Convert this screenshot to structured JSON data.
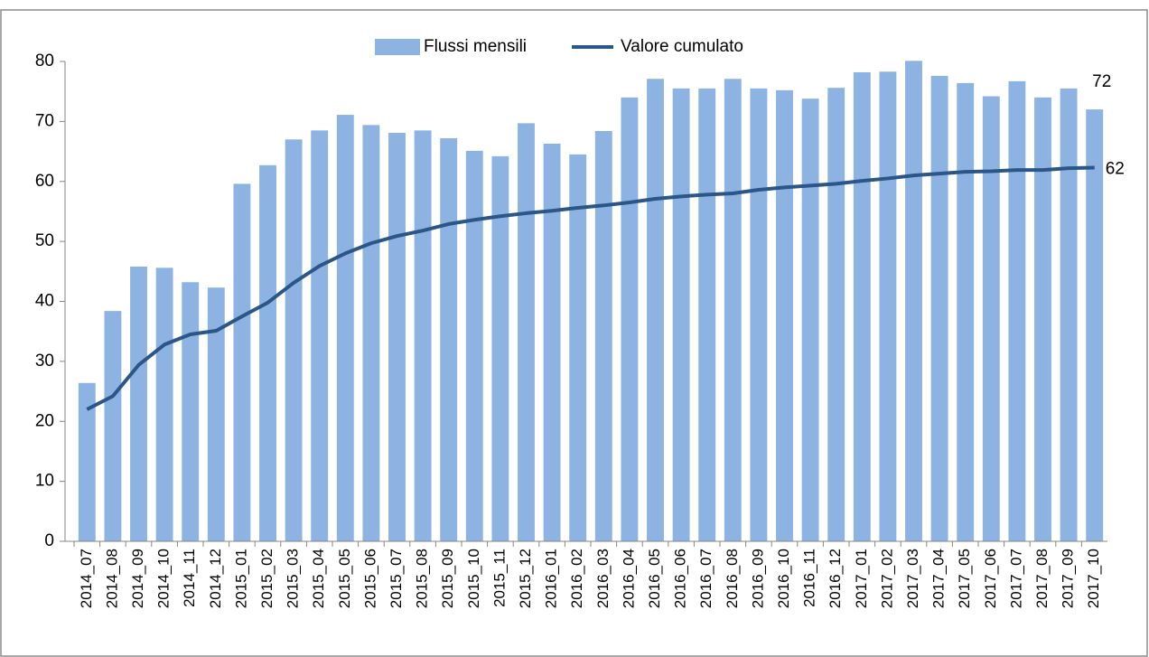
{
  "chart_data": {
    "type": "bar-line",
    "categories": [
      "2014_07",
      "2014_08",
      "2014_09",
      "2014_10",
      "2014_11",
      "2014_12",
      "2015_01",
      "2015_02",
      "2015_03",
      "2015_04",
      "2015_05",
      "2015_06",
      "2015_07",
      "2015_08",
      "2015_09",
      "2015_10",
      "2015_11",
      "2015_12",
      "2016_01",
      "2016_02",
      "2016_03",
      "2016_04",
      "2016_05",
      "2016_06",
      "2016_07",
      "2016_08",
      "2016_09",
      "2016_10",
      "2016_11",
      "2016_12",
      "2017_01",
      "2017_02",
      "2017_03",
      "2017_04",
      "2017_05",
      "2017_06",
      "2017_07",
      "2017_08",
      "2017_09",
      "2017_10"
    ],
    "series": [
      {
        "name": "Flussi mensili",
        "type": "bar",
        "color": "#8db3e2",
        "values": [
          26.4,
          38.4,
          45.8,
          45.6,
          43.2,
          42.3,
          59.6,
          62.7,
          67.0,
          68.5,
          71.1,
          69.4,
          68.1,
          68.5,
          67.2,
          65.1,
          64.2,
          69.7,
          66.3,
          64.5,
          68.4,
          74.0,
          77.1,
          75.5,
          75.5,
          77.1,
          75.5,
          75.2,
          73.8,
          75.6,
          78.2,
          78.3,
          80.1,
          77.6,
          76.4,
          74.2,
          76.7,
          74.0,
          75.5,
          72.0
        ],
        "value_labels": [
          null,
          null,
          null,
          null,
          null,
          null,
          null,
          null,
          null,
          null,
          null,
          null,
          null,
          null,
          null,
          null,
          null,
          null,
          null,
          null,
          null,
          null,
          null,
          null,
          null,
          null,
          null,
          null,
          null,
          null,
          null,
          null,
          null,
          null,
          null,
          null,
          null,
          null,
          null,
          "72"
        ]
      },
      {
        "name": "Valore cumulato",
        "type": "line",
        "color": "#2b5688",
        "values": [
          22.0,
          24.2,
          29.4,
          32.8,
          34.5,
          35.1,
          37.5,
          39.8,
          43.1,
          45.9,
          48.0,
          49.7,
          50.9,
          51.8,
          52.9,
          53.6,
          54.2,
          54.7,
          55.1,
          55.6,
          56.0,
          56.5,
          57.1,
          57.5,
          57.8,
          58.0,
          58.6,
          59.0,
          59.3,
          59.6,
          60.1,
          60.5,
          61.0,
          61.3,
          61.6,
          61.7,
          61.9,
          61.9,
          62.2,
          62.3
        ],
        "value_labels": [
          null,
          null,
          null,
          null,
          null,
          null,
          null,
          null,
          null,
          null,
          null,
          null,
          null,
          null,
          null,
          null,
          null,
          null,
          null,
          null,
          null,
          null,
          null,
          null,
          null,
          null,
          null,
          null,
          null,
          null,
          null,
          null,
          null,
          null,
          null,
          null,
          null,
          null,
          null,
          "62"
        ]
      }
    ],
    "ylim": [
      0,
      80
    ],
    "yticks": [
      0,
      10,
      20,
      30,
      40,
      50,
      60,
      70,
      80
    ],
    "grid": false,
    "legend": "top"
  }
}
